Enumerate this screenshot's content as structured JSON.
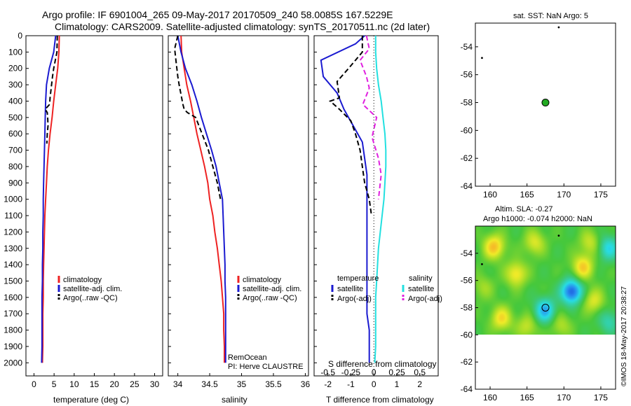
{
  "header": {
    "line1": "Argo profile: IF 6901004_265 09-May-2017 20170509_240 58.0085S 167.5229E",
    "line2": "Climatology: CARS2009. Satellite-adjusted climatology: synTS_20170511.nc (2d later)"
  },
  "colors": {
    "climatology": "#ee2222",
    "satellite": "#1a1ad0",
    "argo": "#000000",
    "sal_satellite": "#22e0e0",
    "sal_argo": "#e020e0",
    "float_marker": "#22aa22"
  },
  "chart_data": [
    {
      "type": "line",
      "name": "temperature-profile",
      "xlabel": "temperature (deg C)",
      "ylabel": "",
      "xlim": [
        -2,
        32
      ],
      "ylim": [
        2080,
        0
      ],
      "xticks": [
        "0",
        "5",
        "10",
        "15",
        "20",
        "25",
        "30"
      ],
      "yticks": [
        "0",
        "100",
        "200",
        "300",
        "400",
        "500",
        "600",
        "700",
        "800",
        "900",
        "1000",
        "1100",
        "1200",
        "1300",
        "1400",
        "1500",
        "1600",
        "1700",
        "1800",
        "1900",
        "2000"
      ],
      "legend": [
        "climatology",
        "satellite-adj. clim.",
        "Argo(..raw -QC)"
      ],
      "series": [
        {
          "name": "climatology",
          "color_key": "climatology",
          "x": [
            6.3,
            6.2,
            5.9,
            5.4,
            4.9,
            4.5,
            4.0,
            3.6,
            3.3,
            3.1,
            2.9,
            2.7,
            2.6,
            2.5,
            2.4,
            2.3,
            2.3,
            2.2,
            2.2,
            2.2,
            2.1
          ],
          "y": [
            0,
            100,
            200,
            300,
            400,
            500,
            600,
            700,
            800,
            900,
            1000,
            1100,
            1200,
            1300,
            1400,
            1500,
            1600,
            1700,
            1800,
            1900,
            2000
          ]
        },
        {
          "name": "satellite-adj. clim.",
          "color_key": "satellite",
          "x": [
            5.4,
            4.9,
            3.8,
            3.1,
            2.9,
            2.8,
            2.7,
            2.6,
            2.5,
            2.4,
            2.3,
            2.3,
            2.2,
            2.2,
            2.1,
            2.1,
            2.0,
            2.0,
            2.0,
            2.0,
            1.9
          ],
          "y": [
            0,
            100,
            200,
            300,
            400,
            500,
            600,
            700,
            800,
            900,
            1000,
            1100,
            1200,
            1300,
            1400,
            1500,
            1600,
            1700,
            1800,
            1900,
            2000
          ]
        },
        {
          "name": "Argo(..raw -QC)",
          "color_key": "argo",
          "x": [
            5.8,
            5.7,
            4.9,
            4.6,
            4.0,
            3.9,
            2.8,
            3.3,
            3.4,
            3.5,
            3.3,
            3.2
          ],
          "y": [
            0,
            100,
            200,
            250,
            380,
            420,
            450,
            470,
            500,
            550,
            600,
            660
          ]
        }
      ]
    },
    {
      "type": "line",
      "name": "salinity-profile",
      "xlabel": "salinity",
      "xlim": [
        33.85,
        36.05
      ],
      "ylim": [
        2080,
        0
      ],
      "xticks": [
        "34",
        "34.5",
        "35",
        "35.5",
        "36"
      ],
      "legend": [
        "climatology",
        "satellite-adj. clim.",
        "Argo(..raw -QC)"
      ],
      "annotations": [
        "RemOcean",
        "PI: Herve CLAUSTRE"
      ],
      "series": [
        {
          "name": "climatology",
          "color_key": "climatology",
          "x": [
            34.05,
            34.06,
            34.1,
            34.14,
            34.2,
            34.25,
            34.3,
            34.36,
            34.42,
            34.47,
            34.5,
            34.55,
            34.58,
            34.62,
            34.65,
            34.68,
            34.7,
            34.72,
            34.72,
            34.73,
            34.73
          ],
          "y": [
            0,
            100,
            200,
            300,
            400,
            500,
            600,
            700,
            800,
            900,
            1000,
            1100,
            1200,
            1300,
            1400,
            1500,
            1600,
            1700,
            1800,
            1900,
            2000
          ]
        },
        {
          "name": "satellite-adj. clim.",
          "color_key": "satellite",
          "x": [
            34.0,
            34.05,
            34.12,
            34.22,
            34.3,
            34.37,
            34.45,
            34.53,
            34.6,
            34.65,
            34.7,
            34.71,
            34.72,
            34.73,
            34.74,
            34.74,
            34.75,
            34.75,
            34.75,
            34.75,
            34.75
          ],
          "y": [
            0,
            100,
            200,
            300,
            400,
            500,
            600,
            700,
            800,
            900,
            1000,
            1100,
            1200,
            1300,
            1400,
            1500,
            1600,
            1700,
            1800,
            1900,
            2000
          ]
        },
        {
          "name": "Argo(..raw -QC)",
          "color_key": "argo",
          "x": [
            34.0,
            33.95,
            33.97,
            34.0,
            34.02,
            34.06,
            34.08,
            34.1,
            34.15,
            34.28,
            34.38,
            34.48,
            34.55,
            34.62,
            34.67
          ],
          "y": [
            0,
            80,
            150,
            250,
            300,
            380,
            420,
            450,
            470,
            500,
            600,
            700,
            800,
            900,
            1000
          ]
        }
      ]
    },
    {
      "type": "line",
      "name": "difference-profile",
      "xlabel": "T difference from climatology",
      "x2label": "S difference from climatology",
      "xlim": [
        -2.6,
        2.8
      ],
      "x2lim": [
        -0.65,
        0.7
      ],
      "ylim": [
        2080,
        0
      ],
      "xticks": [
        "-2",
        "-1",
        "0",
        "1",
        "2"
      ],
      "x2ticks": [
        "-0.5",
        "-0.25",
        "0",
        "0.25",
        "0.5"
      ],
      "legend_titles": [
        "temperature",
        "salinity"
      ],
      "legend": [
        "satellite",
        "Argo(-adj)",
        "satellite",
        "Argo(-adj)"
      ],
      "series": [
        {
          "name": "temperature satellite",
          "color_key": "satellite",
          "axis": "T",
          "x": [
            -0.4,
            -0.8,
            -2.3,
            -2.2,
            -1.6,
            -1.3,
            -0.9,
            -0.5,
            -0.4,
            -0.3,
            -0.3,
            -0.3,
            -0.3,
            -0.3,
            -0.3,
            -0.3,
            -0.3,
            -0.3,
            -0.2,
            -0.2
          ],
          "y": [
            0,
            50,
            150,
            250,
            350,
            450,
            550,
            650,
            750,
            850,
            1000,
            1100,
            1200,
            1300,
            1400,
            1500,
            1600,
            1700,
            1800,
            2000
          ]
        },
        {
          "name": "temperature Argo(-adj)",
          "color_key": "argo",
          "axis": "T",
          "x": [
            -0.5,
            -0.5,
            -1.1,
            -1.6,
            -1.5,
            -1.9,
            -1.5,
            -1.0,
            -0.8,
            -0.6,
            -0.5,
            -0.4,
            -0.2,
            -0.1
          ],
          "y": [
            0,
            100,
            200,
            280,
            380,
            400,
            450,
            520,
            600,
            700,
            800,
            900,
            1000,
            1100
          ]
        },
        {
          "name": "salinity satellite",
          "color_key": "sal_satellite",
          "axis": "S",
          "x": [
            0.02,
            0.02,
            0.03,
            0.05,
            0.08,
            0.1,
            0.12,
            0.13,
            0.13,
            0.12,
            0.11,
            0.09,
            0.07,
            0.05,
            0.04,
            0.03,
            0.02,
            0.02,
            0.02,
            0.02,
            0.01
          ],
          "y": [
            0,
            100,
            200,
            300,
            400,
            500,
            600,
            700,
            800,
            900,
            1000,
            1100,
            1200,
            1300,
            1400,
            1500,
            1600,
            1700,
            1800,
            1900,
            2000
          ]
        },
        {
          "name": "salinity Argo(-adj)",
          "color_key": "sal_argo",
          "axis": "S",
          "x": [
            -0.08,
            -0.05,
            -0.15,
            -0.08,
            -0.05,
            -0.12,
            0.03,
            -0.02,
            0.05,
            0.08,
            0.06,
            0.05
          ],
          "y": [
            0,
            80,
            150,
            250,
            320,
            420,
            500,
            620,
            750,
            850,
            950,
            1000
          ]
        }
      ]
    },
    {
      "type": "scatter",
      "name": "sst-map",
      "title": "sat. SST: NaN Argo: 5",
      "xlim": [
        158,
        177
      ],
      "ylim": [
        -64,
        -52.3
      ],
      "xticks": [
        "160",
        "165",
        "170",
        "175"
      ],
      "yticks": [
        "-54",
        "-56",
        "-58",
        "-60",
        "-62",
        "-64"
      ],
      "points": [
        {
          "label": "float",
          "x": 167.5,
          "y": -58.0,
          "marker": "circle-green"
        },
        {
          "label": "argo-a",
          "x": 169.3,
          "y": -52.6,
          "marker": "dot"
        },
        {
          "label": "argo-b",
          "x": 158.9,
          "y": -54.8,
          "marker": "dot"
        }
      ]
    },
    {
      "type": "heatmap",
      "name": "sla-map",
      "title1": "Altim. SLA: -0.27",
      "title2": "Argo h1000: -0.074 h2000: NaN",
      "xlim": [
        158,
        177
      ],
      "ylim": [
        -64,
        -52
      ],
      "xticks": [
        "160",
        "165",
        "170",
        "175"
      ],
      "yticks": [
        "-54",
        "-56",
        "-58",
        "-60",
        "-62",
        "-64"
      ],
      "data_lat_min": -60,
      "points": [
        {
          "label": "float",
          "x": 167.5,
          "y": -58.0,
          "marker": "circle"
        },
        {
          "label": "argo-a",
          "x": 169.3,
          "y": -52.7,
          "marker": "dot"
        },
        {
          "label": "argo-b",
          "x": 158.9,
          "y": -54.8,
          "marker": "dot"
        }
      ],
      "blobs": [
        {
          "x": 160.5,
          "y": -53.5,
          "v": 0.55
        },
        {
          "x": 163.5,
          "y": -55.5,
          "v": 0.45
        },
        {
          "x": 166,
          "y": -53.2,
          "v": 0.35
        },
        {
          "x": 172.5,
          "y": -55.0,
          "v": 0.5
        },
        {
          "x": 173.5,
          "y": -53.2,
          "v": 0.3
        },
        {
          "x": 176,
          "y": -53.6,
          "v": -0.45
        },
        {
          "x": 171,
          "y": -56.8,
          "v": -0.85
        },
        {
          "x": 167.4,
          "y": -58.2,
          "v": -0.6
        },
        {
          "x": 161.5,
          "y": -58.8,
          "v": 0.45
        },
        {
          "x": 165,
          "y": -59.4,
          "v": 0.3
        },
        {
          "x": 174,
          "y": -57.5,
          "v": 0.35
        },
        {
          "x": 169.5,
          "y": -59.3,
          "v": 0.25
        },
        {
          "x": 159,
          "y": -56.5,
          "v": 0.2
        },
        {
          "x": 176,
          "y": -59.0,
          "v": -0.3
        }
      ]
    }
  ],
  "footer": {
    "credit": "©IMOS 18-May-2017 20:38:27"
  }
}
